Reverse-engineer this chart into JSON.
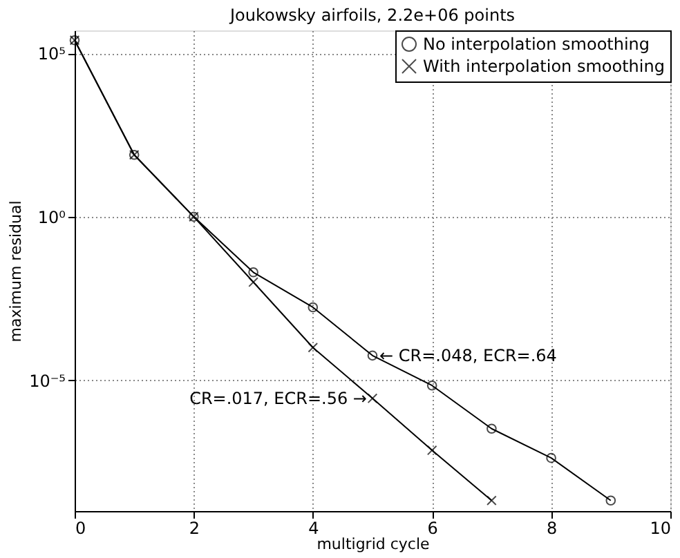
{
  "chart_data": {
    "type": "line",
    "title": "Joukowsky airfoils, 2.2e+06 points",
    "xlabel": "multigrid cycle",
    "ylabel": "maximum residual",
    "series": [
      {
        "name": "No interpolation smoothing",
        "color": "#000000",
        "marker": "circle",
        "x": [
          0,
          1,
          2,
          3,
          4,
          5,
          6,
          7,
          8,
          9
        ],
        "values": [
          250000,
          78,
          1,
          0.02,
          0.0017,
          5.7e-05,
          6.9e-06,
          3.3e-07,
          4.2e-08,
          2.1e-09
        ]
      },
      {
        "name": "With interpolation smoothing",
        "color": "#000000",
        "marker": "cross",
        "x": [
          0,
          1,
          2,
          3,
          4,
          5,
          6,
          7
        ],
        "values": [
          250000,
          78,
          1,
          0.01,
          0.0001,
          2.8e-06,
          7.2e-08,
          2.1e-09
        ]
      }
    ],
    "xlim": [
      0,
      10
    ],
    "xticks": [
      0,
      2,
      4,
      6,
      8,
      10
    ],
    "ylim": [
      1e-09,
      500000
    ],
    "yticks": [
      {
        "value": 100000,
        "label": "10⁵"
      },
      {
        "value": 1,
        "label": "10⁰"
      },
      {
        "value": 1e-05,
        "label": "10⁻⁵"
      }
    ],
    "log": "y",
    "grid": true,
    "legend": "top right",
    "line_style": "solid",
    "annotations": [
      {
        "text": "← CR=.048, ECR=.64",
        "x": 5,
        "y": 5.7e-05
      },
      {
        "text": "CR=.017, ECR=.56 →",
        "x": 5,
        "y": 2.8e-06
      }
    ]
  }
}
